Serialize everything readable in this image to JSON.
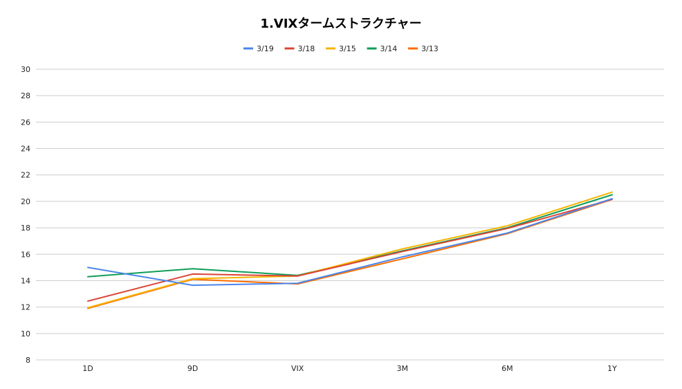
{
  "chart_data": {
    "type": "line",
    "title": "1.VIXタームストラクチャー",
    "xlabel": "",
    "ylabel": "",
    "categories": [
      "1D",
      "9D",
      "VIX",
      "3M",
      "6M",
      "1Y"
    ],
    "ylim": [
      8,
      30
    ],
    "yticks": [
      8,
      10,
      12,
      14,
      16,
      18,
      20,
      22,
      24,
      26,
      28,
      30
    ],
    "grid": true,
    "legend": "top-center",
    "series": [
      {
        "name": "3/19",
        "color": "#4a86e8",
        "values": [
          15.0,
          13.65,
          13.8,
          15.8,
          17.6,
          20.2
        ]
      },
      {
        "name": "3/18",
        "color": "#db4437",
        "values": [
          12.45,
          14.5,
          14.35,
          16.2,
          17.95,
          20.15
        ]
      },
      {
        "name": "3/15",
        "color": "#f4b400",
        "values": [
          11.95,
          14.15,
          14.35,
          16.4,
          18.15,
          20.7
        ]
      },
      {
        "name": "3/14",
        "color": "#0f9d58",
        "values": [
          14.3,
          14.9,
          14.4,
          16.25,
          18.0,
          20.5
        ]
      },
      {
        "name": "3/13",
        "color": "#ff6d00",
        "values": [
          11.9,
          14.1,
          13.75,
          15.65,
          17.55,
          20.15
        ]
      }
    ]
  }
}
